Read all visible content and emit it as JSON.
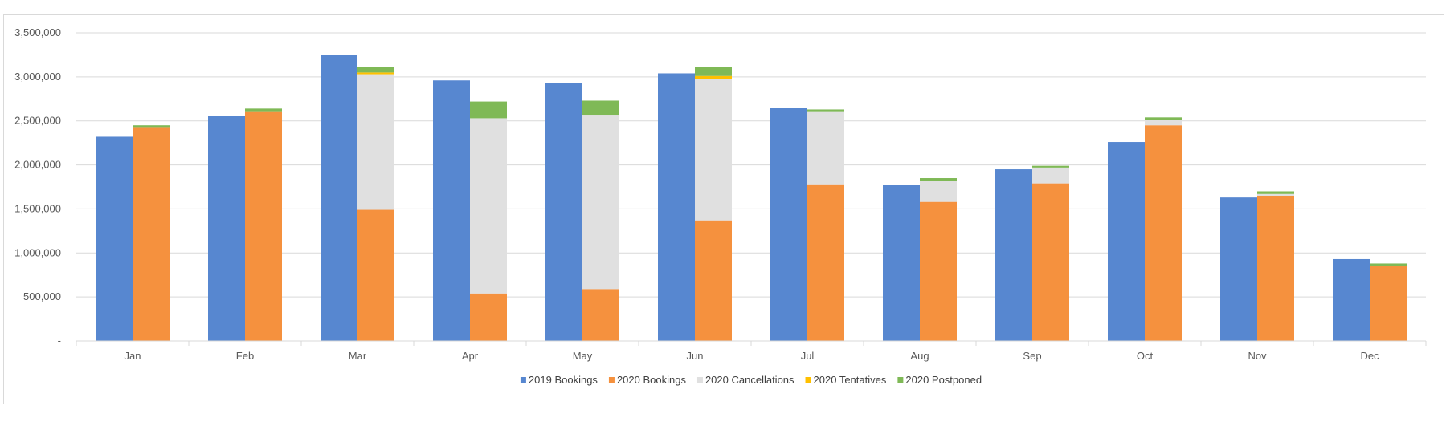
{
  "chart_data": {
    "type": "bar",
    "stacked_groups": true,
    "categories": [
      "Jan",
      "Feb",
      "Mar",
      "Apr",
      "May",
      "Jun",
      "Jul",
      "Aug",
      "Sep",
      "Oct",
      "Nov",
      "Dec"
    ],
    "series": [
      {
        "name": "2019 Bookings",
        "color": "#5787d0",
        "stack": "2019",
        "values": [
          2320000,
          2560000,
          3250000,
          2960000,
          2930000,
          3040000,
          2650000,
          1770000,
          1950000,
          2260000,
          1630000,
          930000
        ]
      },
      {
        "name": "2020 Bookings",
        "color": "#f5913e",
        "stack": "2020",
        "values": [
          2430000,
          2610000,
          1490000,
          540000,
          590000,
          1370000,
          1780000,
          1580000,
          1790000,
          2450000,
          1650000,
          850000
        ]
      },
      {
        "name": "2020 Cancellations",
        "color": "#e0e0e0",
        "stack": "2020",
        "values": [
          0,
          0,
          1540000,
          1990000,
          1980000,
          1610000,
          830000,
          240000,
          180000,
          60000,
          20000,
          0
        ]
      },
      {
        "name": "2020 Tentatives",
        "color": "#ffc000",
        "stack": "2020",
        "values": [
          0,
          0,
          20000,
          0,
          0,
          30000,
          0,
          0,
          0,
          0,
          0,
          0
        ]
      },
      {
        "name": "2020 Postponed",
        "color": "#7fb956",
        "stack": "2020",
        "values": [
          20000,
          30000,
          60000,
          190000,
          160000,
          100000,
          20000,
          30000,
          20000,
          30000,
          30000,
          30000
        ]
      }
    ],
    "yticks": [
      "-",
      "500,000",
      "1,000,000",
      "1,500,000",
      "2,000,000",
      "2,500,000",
      "3,000,000",
      "3,500,000"
    ],
    "ylim": [
      0,
      3500000
    ],
    "grid": true,
    "legend_position": "bottom",
    "title": "",
    "xlabel": "",
    "ylabel": ""
  }
}
